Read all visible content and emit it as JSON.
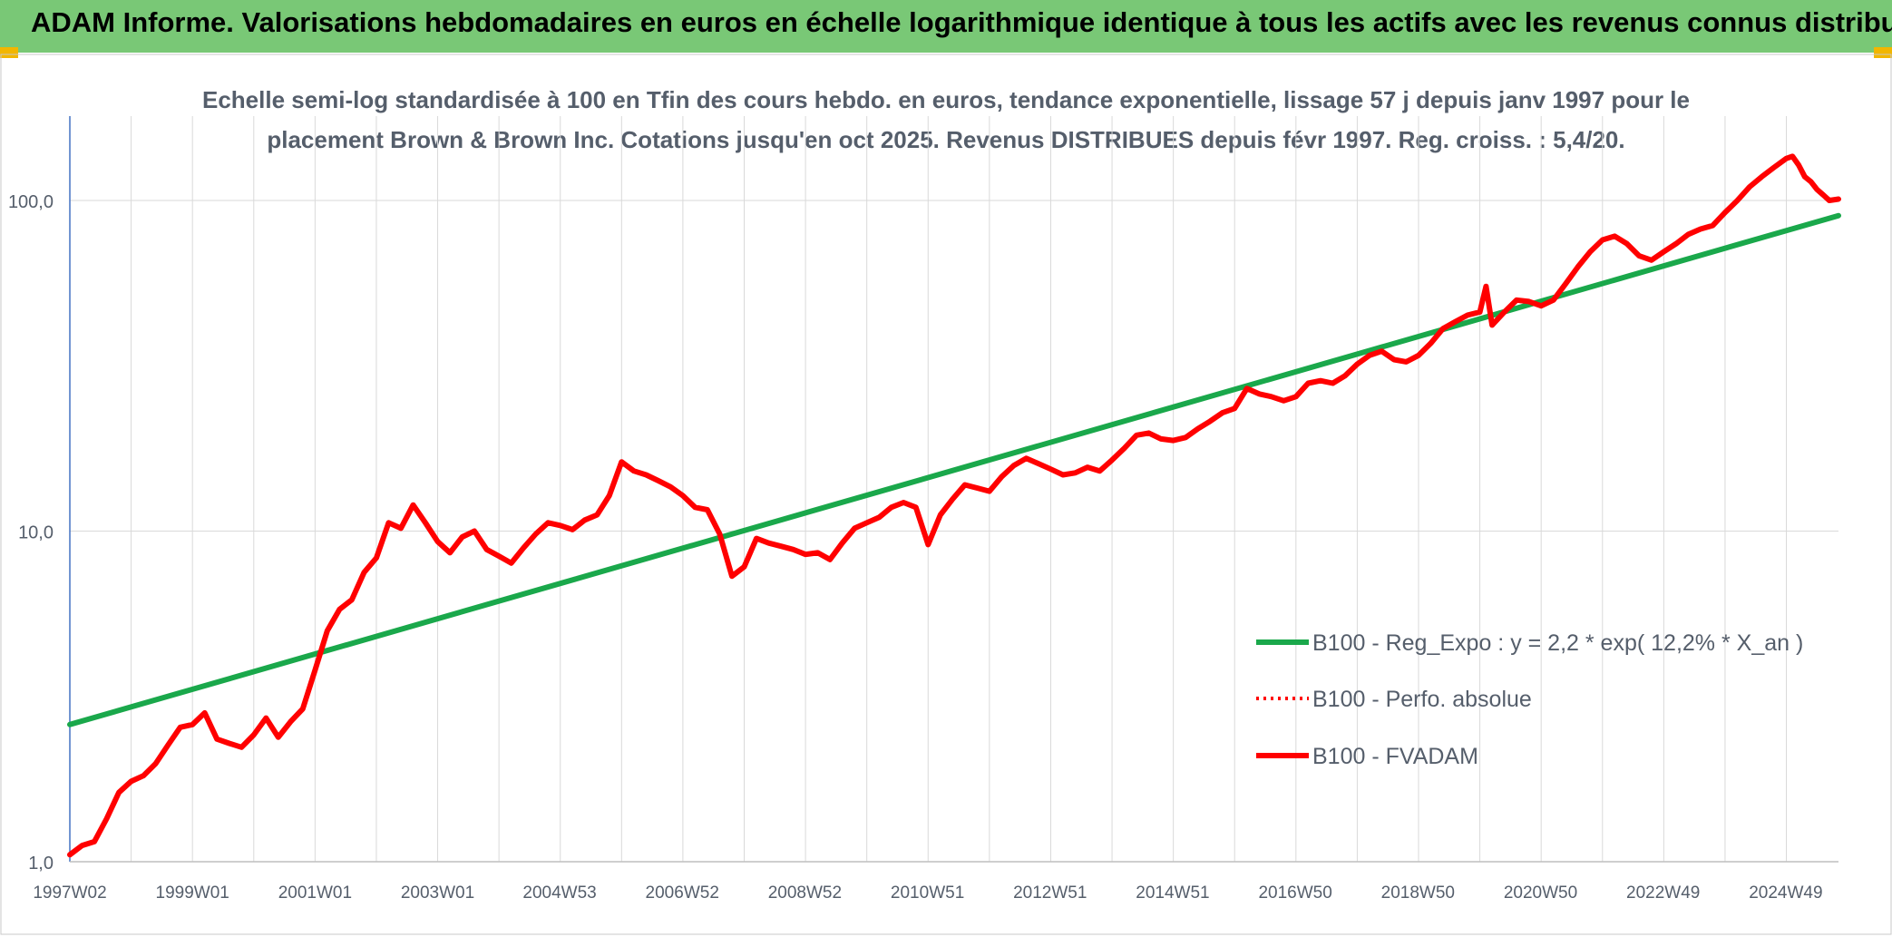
{
  "header": {
    "title": "ADAM Informe. Valorisations hebdomadaires en euros en échelle logarithmique identique à tous les actifs avec les revenus connus distribués"
  },
  "colors": {
    "header_bg": "#79c876",
    "corner_accent": "#f2b600",
    "series_fvadam": "#ff0000",
    "series_perfo": "#ff0000",
    "series_regexpo": "#1aa84b",
    "grid": "#d9d9d9",
    "axis_text": "#555e6b"
  },
  "chart_data": {
    "type": "line",
    "subtitle_line1": "Echelle semi-log standardisée à 100 en Tfin des cours hebdo. en euros, tendance exponentielle, lissage 57 j depuis janv 1997 pour le",
    "subtitle_line2": "placement Brown & Brown Inc. Cotations jusqu'en oct 2025. Revenus DISTRIBUES depuis févr 1997. Reg. croiss. : 5,4/20.",
    "y_scale": "log",
    "ylim": [
      1,
      180
    ],
    "y_ticks": [
      {
        "value": 1,
        "label": "1,0"
      },
      {
        "value": 10,
        "label": "10,0"
      },
      {
        "value": 100,
        "label": "100,0"
      }
    ],
    "xlim": [
      1997.0,
      2025.85
    ],
    "x_ticks": [
      {
        "value": 1997.0,
        "label": "1997W02"
      },
      {
        "value": 1999.0,
        "label": "1999W01"
      },
      {
        "value": 2001.0,
        "label": "2001W01"
      },
      {
        "value": 2003.0,
        "label": "2003W01"
      },
      {
        "value": 2004.99,
        "label": "2004W53"
      },
      {
        "value": 2006.99,
        "label": "2006W52"
      },
      {
        "value": 2008.99,
        "label": "2008W52"
      },
      {
        "value": 2010.99,
        "label": "2010W51"
      },
      {
        "value": 2012.99,
        "label": "2012W51"
      },
      {
        "value": 2014.99,
        "label": "2014W51"
      },
      {
        "value": 2016.99,
        "label": "2016W50"
      },
      {
        "value": 2018.99,
        "label": "2018W50"
      },
      {
        "value": 2020.99,
        "label": "2020W50"
      },
      {
        "value": 2022.99,
        "label": "2022W49"
      },
      {
        "value": 2024.99,
        "label": "2024W49"
      }
    ],
    "grid": true,
    "legend_position": "right-center",
    "series": [
      {
        "name": "B100 - Reg_Expo : y = 2,2 * exp( 12,2% * X_an )",
        "style": "solid-green",
        "x": [
          1997.0,
          2025.85
        ],
        "values": [
          2.6,
          90
        ]
      },
      {
        "name": "B100 - Perfo. absolue",
        "style": "dotted-red",
        "x": [],
        "values": []
      },
      {
        "name": "B100 - FVADAM",
        "style": "solid-red",
        "x": [
          1997.0,
          1997.2,
          1997.4,
          1997.6,
          1997.8,
          1998.0,
          1998.2,
          1998.4,
          1998.6,
          1998.8,
          1999.0,
          1999.2,
          1999.4,
          1999.6,
          1999.8,
          2000.0,
          2000.2,
          2000.4,
          2000.6,
          2000.8,
          2001.0,
          2001.2,
          2001.4,
          2001.6,
          2001.8,
          2002.0,
          2002.2,
          2002.4,
          2002.6,
          2002.8,
          2003.0,
          2003.2,
          2003.4,
          2003.6,
          2003.8,
          2004.0,
          2004.2,
          2004.4,
          2004.6,
          2004.8,
          2005.0,
          2005.2,
          2005.4,
          2005.6,
          2005.8,
          2006.0,
          2006.2,
          2006.4,
          2006.6,
          2006.8,
          2007.0,
          2007.2,
          2007.4,
          2007.6,
          2007.8,
          2008.0,
          2008.2,
          2008.4,
          2008.6,
          2008.8,
          2009.0,
          2009.2,
          2009.4,
          2009.6,
          2009.8,
          2010.0,
          2010.2,
          2010.4,
          2010.6,
          2010.8,
          2011.0,
          2011.2,
          2011.4,
          2011.6,
          2011.8,
          2012.0,
          2012.2,
          2012.4,
          2012.6,
          2012.8,
          2013.0,
          2013.2,
          2013.4,
          2013.6,
          2013.8,
          2014.0,
          2014.2,
          2014.4,
          2014.6,
          2014.8,
          2015.0,
          2015.2,
          2015.4,
          2015.6,
          2015.8,
          2016.0,
          2016.2,
          2016.4,
          2016.6,
          2016.8,
          2017.0,
          2017.2,
          2017.4,
          2017.6,
          2017.8,
          2018.0,
          2018.2,
          2018.4,
          2018.6,
          2018.8,
          2019.0,
          2019.2,
          2019.4,
          2019.6,
          2019.8,
          2020.0,
          2020.1,
          2020.2,
          2020.4,
          2020.6,
          2020.8,
          2021.0,
          2021.2,
          2021.4,
          2021.6,
          2021.8,
          2022.0,
          2022.2,
          2022.4,
          2022.6,
          2022.8,
          2023.0,
          2023.2,
          2023.4,
          2023.6,
          2023.8,
          2024.0,
          2024.2,
          2024.4,
          2024.6,
          2024.8,
          2025.0,
          2025.1,
          2025.2,
          2025.3,
          2025.4,
          2025.5,
          2025.6,
          2025.7,
          2025.85
        ],
        "values": [
          1.05,
          1.12,
          1.15,
          1.35,
          1.62,
          1.75,
          1.82,
          1.98,
          2.25,
          2.55,
          2.6,
          2.82,
          2.35,
          2.28,
          2.22,
          2.42,
          2.72,
          2.38,
          2.65,
          2.9,
          3.8,
          5.0,
          5.8,
          6.2,
          7.5,
          8.3,
          10.6,
          10.2,
          12.0,
          10.6,
          9.3,
          8.6,
          9.6,
          10.0,
          8.8,
          8.4,
          8.0,
          8.9,
          9.8,
          10.6,
          10.4,
          10.1,
          10.8,
          11.2,
          12.8,
          16.2,
          15.2,
          14.8,
          14.2,
          13.6,
          12.8,
          11.8,
          11.6,
          9.8,
          7.3,
          7.8,
          9.5,
          9.2,
          9.0,
          8.8,
          8.5,
          8.6,
          8.2,
          9.2,
          10.2,
          10.6,
          11.0,
          11.8,
          12.2,
          11.8,
          9.1,
          11.2,
          12.5,
          13.8,
          13.5,
          13.2,
          14.6,
          15.8,
          16.6,
          16.0,
          15.4,
          14.8,
          15.0,
          15.6,
          15.2,
          16.4,
          17.8,
          19.5,
          19.8,
          19.0,
          18.8,
          19.2,
          20.4,
          21.5,
          22.8,
          23.5,
          27.0,
          26.0,
          25.5,
          24.8,
          25.5,
          28.0,
          28.5,
          28.0,
          29.5,
          32.0,
          34.0,
          35.0,
          33.0,
          32.5,
          34.0,
          37.0,
          41.0,
          43.0,
          45.0,
          46.0,
          55.0,
          42.0,
          46.0,
          50.0,
          49.5,
          48.0,
          50.0,
          56.0,
          63.0,
          70.0,
          76.0,
          78.0,
          74.0,
          68.0,
          66.0,
          70.0,
          74.0,
          79.0,
          82.0,
          84.0,
          92.0,
          100.0,
          110.0,
          118.0,
          126.0,
          134.0,
          136.0,
          128.0,
          118.0,
          114.0,
          108.0,
          104.0,
          100.0,
          101.0
        ]
      }
    ],
    "legend_entries": [
      {
        "label": "B100 - Reg_Expo : y = 2,2 * exp( 12,2% * X_an )",
        "style": "solid-green"
      },
      {
        "label": "B100 - Perfo. absolue",
        "style": "dotted-red"
      },
      {
        "label": "B100 - FVADAM",
        "style": "solid-red"
      }
    ]
  }
}
